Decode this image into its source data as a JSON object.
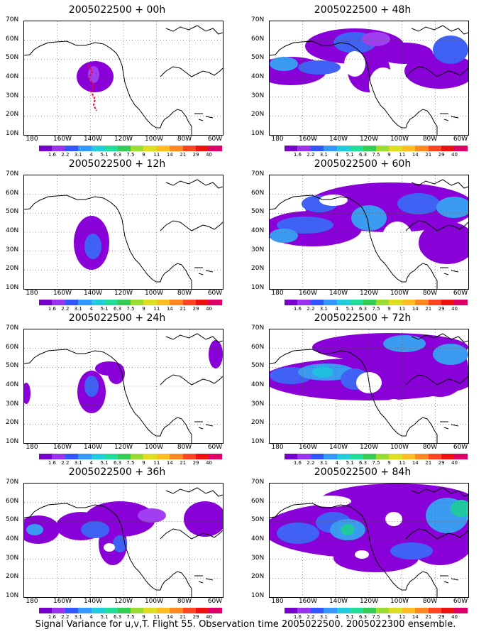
{
  "panels": [
    {
      "title": "2005022500 + 00h",
      "level": 0
    },
    {
      "title": "2005022500 + 48h",
      "level": 4
    },
    {
      "title": "2005022500 + 12h",
      "level": 1
    },
    {
      "title": "2005022500 + 60h",
      "level": 5
    },
    {
      "title": "2005022500 + 24h",
      "level": 2
    },
    {
      "title": "2005022500 + 72h",
      "level": 6
    },
    {
      "title": "2005022500 + 36h",
      "level": 3
    },
    {
      "title": "2005022500 + 84h",
      "level": 7
    }
  ],
  "axes": {
    "lat_labels": [
      "70N",
      "60N",
      "50N",
      "40N",
      "30N",
      "20N",
      "10N"
    ],
    "lon_labels": [
      "180",
      "160W",
      "140W",
      "120W",
      "100W",
      "80W",
      "60W"
    ]
  },
  "colorbar": {
    "colors": [
      "#7700cc",
      "#9933ee",
      "#3355ff",
      "#3399ff",
      "#22ccdd",
      "#22dd99",
      "#33cc55",
      "#99dd33",
      "#dddd22",
      "#ffbb22",
      "#ff8822",
      "#ff4422",
      "#ee1111",
      "#dd0066"
    ],
    "labels": [
      "1.6",
      "2.2",
      "3.1",
      "4",
      "5.1",
      "6.3",
      "7.5",
      "9",
      "11",
      "14",
      "21",
      "29",
      "40"
    ]
  },
  "caption": "Signal Variance for u,v,T. Flight 55. Observation time 2005022500. 2005022300 ensemble.",
  "colors": {
    "purple": "#8a00d8",
    "light_purple": "#a23ef2",
    "blue": "#3f62f5",
    "light_blue": "#3a9bf0",
    "cyan": "#1fbfe0",
    "green": "#20c8a0",
    "red": "#ff0022"
  }
}
